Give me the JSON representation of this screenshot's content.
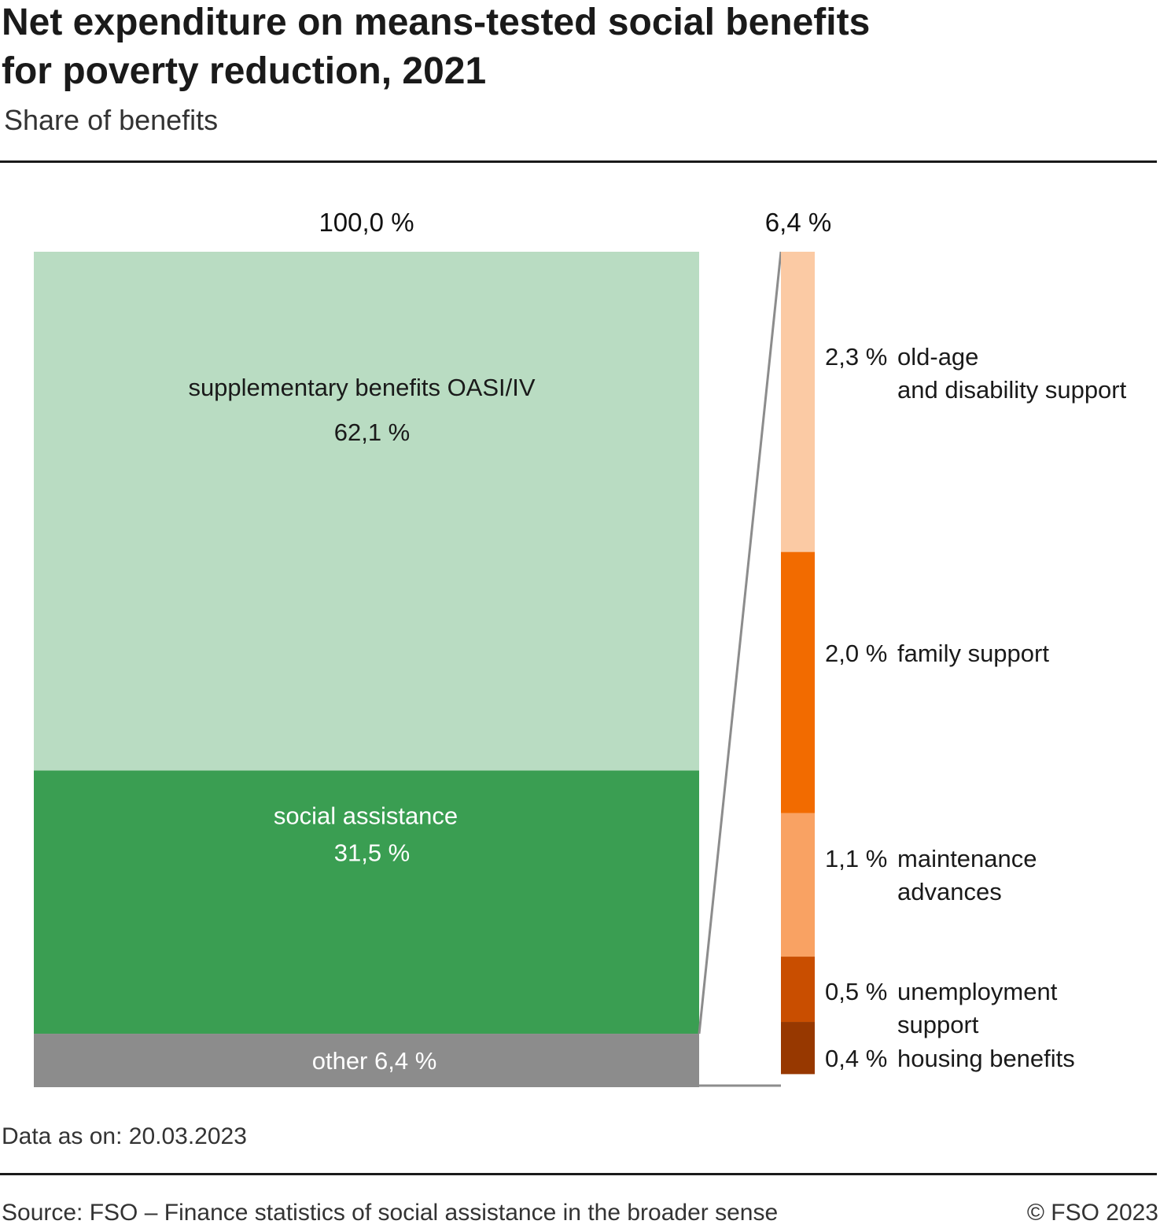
{
  "title_lines": [
    "Net expenditure on means-tested social benefits",
    "for poverty reduction, 2021"
  ],
  "subtitle": "Share of benefits",
  "footnote": "Data as on: 20.03.2023",
  "source": "Source: FSO – Finance statistics of social assistance in the broader sense",
  "copyright": "© FSO 2023",
  "chart_data": {
    "type": "bar",
    "stacked": true,
    "title": "Net expenditure on means-tested social benefits for poverty reduction, 2021",
    "ylabel": "Share of benefits",
    "bars": [
      {
        "total_label": "100,0 %",
        "total": 100.0,
        "segments": [
          {
            "name": "supplementary benefits OASI/IV",
            "value": 62.1,
            "value_label": "62,1 %",
            "color": "#b9dcc2",
            "text_color": "#1a1a1a"
          },
          {
            "name": "social assistance",
            "value": 31.5,
            "value_label": "31,5 %",
            "color": "#3a9e52",
            "text_color": "#ffffff"
          },
          {
            "name": "other",
            "value": 6.4,
            "value_label": "6,4 %",
            "color": "#8c8c8c",
            "text_color": "#ffffff"
          }
        ]
      },
      {
        "total_label": "6,4 %",
        "total": 6.4,
        "breakdown_of": "other",
        "segments": [
          {
            "name": "old-age and disability support",
            "name_lines": [
              "old-age",
              "and disability support"
            ],
            "value": 2.3,
            "value_label": "2,3 %",
            "color": "#fbcaa4"
          },
          {
            "name": "family support",
            "name_lines": [
              "family support"
            ],
            "value": 2.0,
            "value_label": "2,0 %",
            "color": "#f26b00"
          },
          {
            "name": "maintenance advances",
            "name_lines": [
              "maintenance",
              "advances"
            ],
            "value": 1.1,
            "value_label": "1,1 %",
            "color": "#f9a263"
          },
          {
            "name": "unemployment support",
            "name_lines": [
              "unemployment",
              "support"
            ],
            "value": 0.5,
            "value_label": "0,5 %",
            "color": "#c94e00"
          },
          {
            "name": "housing benefits",
            "name_lines": [
              "housing benefits"
            ],
            "value": 0.4,
            "value_label": "0,4 %",
            "color": "#973800"
          }
        ]
      }
    ],
    "connector_color": "#8c8c8c"
  }
}
